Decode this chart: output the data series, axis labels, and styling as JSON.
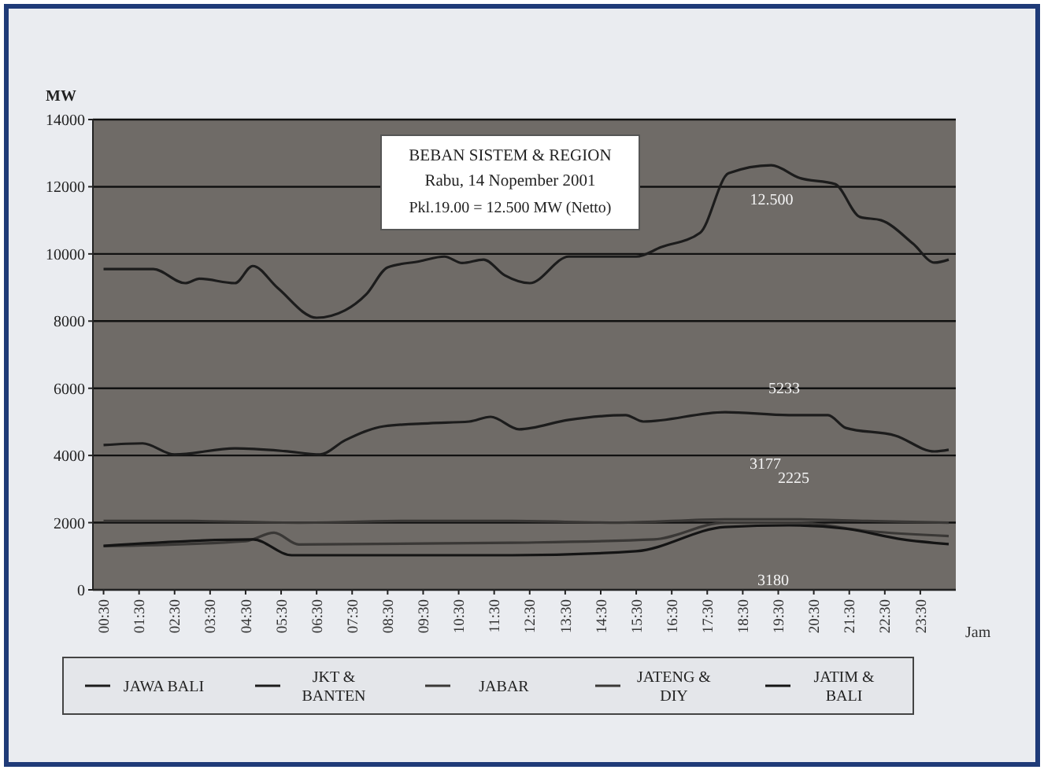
{
  "chart_data": {
    "type": "line",
    "title": "BEBAN SISTEM & REGION",
    "subtitle": "Rabu, 14 Nopember 2001",
    "ylabel": "MW",
    "xlabel": "Jam",
    "annotations": [
      "Pkl.19.00 = 12.500 MW (Netto)",
      "12.500",
      "5233",
      "3177",
      "2225",
      "3180"
    ],
    "xlim": [
      0.2,
      24.5
    ],
    "ylim": [
      0,
      14000
    ],
    "xticks": [
      {
        "value": 0.5,
        "label": "00:30"
      },
      {
        "value": 1.5,
        "label": "01:30"
      },
      {
        "value": 2.5,
        "label": "02:30"
      },
      {
        "value": 3.5,
        "label": "03:30"
      },
      {
        "value": 4.5,
        "label": "04:30"
      },
      {
        "value": 5.5,
        "label": "05:30"
      },
      {
        "value": 6.5,
        "label": "06:30"
      },
      {
        "value": 7.5,
        "label": "07:30"
      },
      {
        "value": 8.5,
        "label": "08:30"
      },
      {
        "value": 9.5,
        "label": "09:30"
      },
      {
        "value": 10.5,
        "label": "10:30"
      },
      {
        "value": 11.5,
        "label": "11:30"
      },
      {
        "value": 12.5,
        "label": "12:30"
      },
      {
        "value": 13.5,
        "label": "13:30"
      },
      {
        "value": 14.5,
        "label": "14:30"
      },
      {
        "value": 15.5,
        "label": "15:30"
      },
      {
        "value": 16.5,
        "label": "16:30"
      },
      {
        "value": 17.5,
        "label": "17:30"
      },
      {
        "value": 18.5,
        "label": "18:30"
      },
      {
        "value": 19.5,
        "label": "19:30"
      },
      {
        "value": 20.5,
        "label": "20:30"
      },
      {
        "value": 21.5,
        "label": "21:30"
      },
      {
        "value": 22.5,
        "label": "22:30"
      },
      {
        "value": 23.5,
        "label": "23:30"
      }
    ],
    "yticks": [
      0,
      2000,
      4000,
      6000,
      8000,
      10000,
      12000,
      14000
    ],
    "grid": "y",
    "legend": "bottom",
    "marker": "none",
    "line_style": "solid",
    "series": [
      {
        "name": "JAWA BALI",
        "color": "#1c1c1c",
        "x": [
          0.5,
          1.9,
          2.8,
          3.2,
          4.2,
          4.7,
          5.4,
          6.5,
          7.3,
          7.9,
          8.5,
          9.4,
          10.1,
          10.6,
          11.2,
          11.8,
          12.5,
          13.6,
          15.5,
          16.2,
          17.3,
          18.1,
          19.3,
          20.1,
          21.1,
          21.8,
          22.4,
          23.3,
          23.9,
          24.3
        ],
        "values": [
          9550,
          9550,
          9130,
          9260,
          9130,
          9640,
          8990,
          8100,
          8320,
          8800,
          9600,
          9780,
          9920,
          9730,
          9830,
          9360,
          9130,
          9920,
          9920,
          10200,
          10630,
          12400,
          12640,
          12260,
          12080,
          11100,
          11000,
          10300,
          9740,
          9830
        ]
      },
      {
        "name": "JKT & BANTEN",
        "color": "#1c1c1c",
        "x": [
          0.5,
          1.6,
          2.5,
          4.2,
          5.6,
          6.6,
          7.3,
          8.4,
          9.7,
          10.8,
          11.4,
          12.2,
          13.6,
          15.2,
          15.7,
          18.0,
          19.8,
          20.9,
          21.4,
          22.8,
          23.9,
          24.3
        ],
        "values": [
          4310,
          4360,
          4030,
          4210,
          4130,
          4030,
          4450,
          4870,
          4960,
          5010,
          5150,
          4780,
          5060,
          5200,
          5010,
          5290,
          5200,
          5200,
          4820,
          4590,
          4120,
          4170
        ]
      },
      {
        "name": "JABAR",
        "color": "#3a3836",
        "x": [
          0.5,
          3.0,
          6.0,
          9.0,
          12.0,
          15.0,
          18.0,
          20.0,
          22.0,
          24.3
        ],
        "values": [
          2050,
          2050,
          2000,
          2050,
          2050,
          2000,
          2100,
          2100,
          2050,
          2000
        ]
      },
      {
        "name": "JATENG & DIY",
        "color": "#3a3836",
        "x": [
          0.5,
          4.5,
          5.3,
          6.0,
          12.0,
          16.0,
          18.0,
          20.0,
          22.0,
          24.3
        ],
        "values": [
          1300,
          1450,
          1700,
          1350,
          1400,
          1500,
          2000,
          2000,
          1750,
          1600
        ]
      },
      {
        "name": "JATIM & BALI",
        "color": "#141414",
        "x": [
          0.5,
          4.7,
          5.8,
          12.0,
          15.5,
          18.0,
          19.8,
          21.4,
          23.0,
          24.3
        ],
        "values": [
          1310,
          1500,
          1030,
          1030,
          1150,
          1870,
          1920,
          1820,
          1500,
          1360
        ]
      }
    ]
  }
}
